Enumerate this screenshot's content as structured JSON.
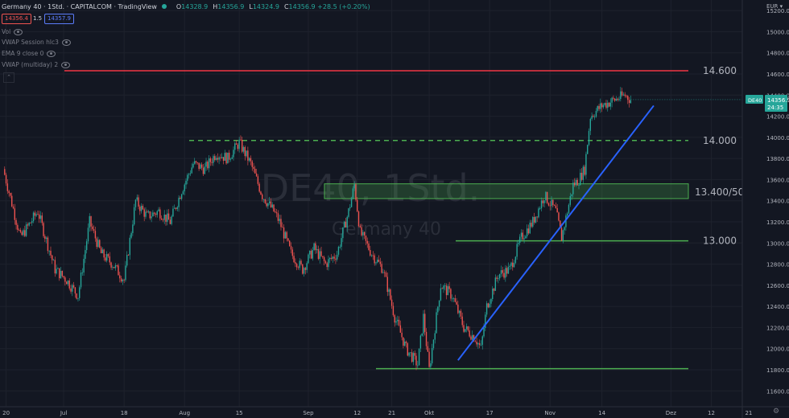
{
  "header": {
    "title": "Germany 40 · 1Std. · CAPITALCOM · TradingView",
    "ohlc": [
      {
        "key": "O",
        "value": "14328.9"
      },
      {
        "key": "H",
        "value": "14356.9"
      },
      {
        "key": "L",
        "value": "14324.9"
      },
      {
        "key": "C",
        "value": "14356.9 +28.5 (+0.20%)"
      }
    ],
    "sell_price": "14356.4",
    "spread": "1.5",
    "buy_price": "14357.9"
  },
  "indicators": [
    "Vol",
    "VWAP Session hlc3",
    "EMA 9 close 0",
    "VWAP (multiday) 2"
  ],
  "currency": "EUR",
  "watermark": {
    "symbol": "DE40, 1Std.",
    "name": "Germany 40"
  },
  "colors": {
    "up": "#26a69a",
    "down": "#ef5350",
    "resistance": "#f23645",
    "support": "#4caf50",
    "trend": "#2962ff"
  },
  "chart_data": {
    "type": "candlestick",
    "title": "",
    "xlabel": "",
    "ylabel": "",
    "ylim": [
      11450,
      15300
    ],
    "y_ticks": [
      "15200.0",
      "15000.0",
      "14800.0",
      "14600.0",
      "14400.0",
      "14200.0",
      "14000.0",
      "13800.0",
      "13600.0",
      "13400.0",
      "13200.0",
      "13000.0",
      "12800.0",
      "12600.0",
      "12400.0",
      "12200.0",
      "12000.0",
      "11800.0",
      "11600.0"
    ],
    "x_ticks": [
      {
        "label": "20",
        "t": 0.5
      },
      {
        "label": "Jul",
        "t": 10.5
      },
      {
        "label": "18",
        "t": 21
      },
      {
        "label": "Aug",
        "t": 31.5
      },
      {
        "label": "15",
        "t": 41
      },
      {
        "label": "Sep",
        "t": 53
      },
      {
        "label": "12",
        "t": 61.5
      },
      {
        "label": "21",
        "t": 67.5
      },
      {
        "label": "Okt",
        "t": 74
      },
      {
        "label": "17",
        "t": 84.5
      },
      {
        "label": "Nov",
        "t": 95
      },
      {
        "label": "14",
        "t": 104
      },
      {
        "label": "Dez",
        "t": 116
      },
      {
        "label": "12",
        "t": 123
      },
      {
        "label": "21",
        "t": 129.5
      }
    ],
    "path": [
      [
        0,
        13700
      ],
      [
        3,
        13050
      ],
      [
        6,
        13300
      ],
      [
        9,
        12750
      ],
      [
        11,
        12650
      ],
      [
        13,
        12500
      ],
      [
        15,
        13200
      ],
      [
        17,
        12900
      ],
      [
        19,
        12800
      ],
      [
        21,
        12650
      ],
      [
        23,
        13400
      ],
      [
        25,
        13250
      ],
      [
        27,
        13300
      ],
      [
        29,
        13200
      ],
      [
        31,
        13500
      ],
      [
        33,
        13750
      ],
      [
        35,
        13700
      ],
      [
        37,
        13850
      ],
      [
        39,
        13800
      ],
      [
        41,
        13950
      ],
      [
        43,
        13750
      ],
      [
        45,
        13450
      ],
      [
        47,
        13300
      ],
      [
        48,
        13200
      ],
      [
        50,
        12900
      ],
      [
        52,
        12750
      ],
      [
        54,
        12950
      ],
      [
        56,
        12800
      ],
      [
        58,
        12900
      ],
      [
        60,
        13300
      ],
      [
        61,
        13550
      ],
      [
        62,
        13100
      ],
      [
        64,
        12900
      ],
      [
        66,
        12750
      ],
      [
        68,
        12300
      ],
      [
        70,
        12000
      ],
      [
        72,
        11850
      ],
      [
        73,
        12300
      ],
      [
        74,
        11800
      ],
      [
        75,
        12200
      ],
      [
        76,
        12600
      ],
      [
        78,
        12500
      ],
      [
        80,
        12200
      ],
      [
        82,
        12100
      ],
      [
        83,
        12000
      ],
      [
        84,
        12400
      ],
      [
        86,
        12700
      ],
      [
        88,
        12750
      ],
      [
        90,
        13050
      ],
      [
        92,
        13200
      ],
      [
        94,
        13450
      ],
      [
        96,
        13300
      ],
      [
        97,
        13050
      ],
      [
        99,
        13550
      ],
      [
        100,
        13600
      ],
      [
        101,
        13700
      ],
      [
        102,
        14200
      ],
      [
        104,
        14300
      ],
      [
        106,
        14350
      ],
      [
        108,
        14400
      ],
      [
        109,
        14356.9
      ]
    ],
    "levels": [
      {
        "label": "14.600",
        "value": 14630,
        "style": "solid",
        "color": "#f23645"
      },
      {
        "label": "14.000",
        "value": 13970,
        "style": "dashed",
        "color": "#4caf50"
      },
      {
        "label": "13.400/500",
        "value": 13480,
        "style": "zone",
        "color": "#4caf50"
      },
      {
        "label": "13.000",
        "value": 13020,
        "style": "solid",
        "color": "#4caf50"
      },
      {
        "label": "",
        "value": 11810,
        "style": "solid",
        "color": "#4caf50"
      }
    ],
    "trendline": [
      [
        79,
        11890
      ],
      [
        113,
        14300
      ]
    ],
    "last_price": {
      "symbol": "DE40",
      "value": "14356.9",
      "countdown": "24:35"
    }
  }
}
